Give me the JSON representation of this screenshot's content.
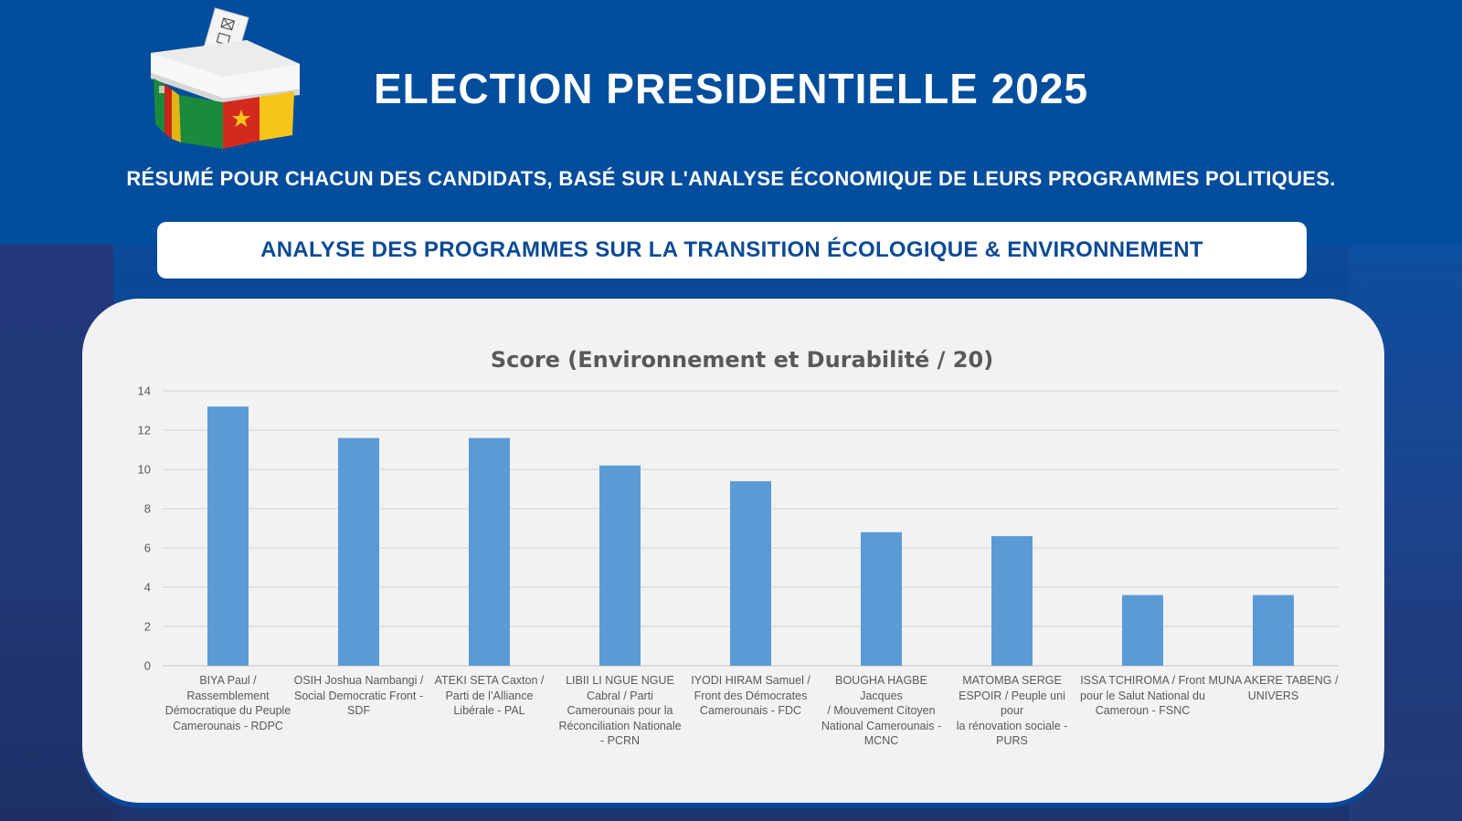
{
  "header": {
    "title": "ELECTION PRESIDENTIELLE 2025",
    "subtitle": "RÉSUMÉ POUR CHACUN DES CANDIDATS, BASÉ SUR L'ANALYSE ÉCONOMIQUE DE LEURS PROGRAMMES POLITIQUES.",
    "logo_icon": "ballot-box-cameroon-flag-icon",
    "logo_colors": {
      "green": "#1a8a3c",
      "red": "#d42a1e",
      "yellow": "#f5c518"
    }
  },
  "section": {
    "banner": "ANALYSE DES PROGRAMMES SUR LA TRANSITION ÉCOLOGIQUE & ENVIRONNEMENT"
  },
  "colors": {
    "background_blue": "#024d9c",
    "banner_text": "#0c4a94",
    "bar": "#5b9bd5",
    "card": "#f2f2f2",
    "gridline": "#d9d9d9",
    "axis_text": "#595959"
  },
  "chart_data": {
    "type": "bar",
    "title": "Score (Environnement et Durabilité / 20)",
    "xlabel": "",
    "ylabel": "",
    "ylim": [
      0,
      14
    ],
    "yticks": [
      0,
      2,
      4,
      6,
      8,
      10,
      12,
      14
    ],
    "grid": true,
    "legend": "none",
    "categories": [
      "BIYA Paul / Rassemblement Démocratique du Peuple Camerounais - RDPC",
      "OSIH Joshua Nambangi / Social Democratic Front - SDF",
      "ATEKI SETA Caxton / Parti de l’Alliance Libérale - PAL",
      "LIBII LI NGUE NGUE Cabral / Parti Camerounais pour la Réconciliation Nationale - PCRN",
      "IYODI HIRAM Samuel / Front des Démocrates Camerounais - FDC",
      "BOUGHA HAGBE Jacques / Mouvement Citoyen National Camerounais - MCNC",
      "MATOMBA SERGE ESPOIR / Peuple uni pour la rénovation sociale - PURS",
      "ISSA TCHIROMA / Front pour le Salut National du Cameroun - FSNC",
      "MUNA AKERE TABENG / UNIVERS"
    ],
    "category_label_lines": [
      [
        "BIYA Paul /",
        "Rassemblement",
        "Démocratique du Peuple",
        "Camerounais - RDPC"
      ],
      [
        "OSIH Joshua Nambangi /",
        "Social Democratic Front -",
        "SDF"
      ],
      [
        "ATEKI SETA Caxton /",
        "Parti de l’Alliance",
        "Libérale - PAL"
      ],
      [
        "LIBII LI NGUE NGUE",
        "Cabral / Parti",
        "Camerounais pour la",
        "Réconciliation Nationale",
        "- PCRN"
      ],
      [
        "IYODI HIRAM Samuel /",
        "Front des Démocrates",
        "Camerounais - FDC"
      ],
      [
        "BOUGHA HAGBE Jacques",
        "/ Mouvement Citoyen",
        "National Camerounais -",
        "MCNC"
      ],
      [
        "MATOMBA SERGE",
        "ESPOIR / Peuple uni pour",
        "la rénovation sociale -",
        "PURS"
      ],
      [
        "ISSA TCHIROMA / Front",
        "pour le Salut National du",
        "Cameroun - FSNC"
      ],
      [
        "MUNA AKERE TABENG /",
        "UNIVERS"
      ]
    ],
    "values": [
      13.2,
      11.6,
      11.6,
      10.2,
      9.4,
      6.8,
      6.6,
      3.6,
      3.6
    ]
  }
}
